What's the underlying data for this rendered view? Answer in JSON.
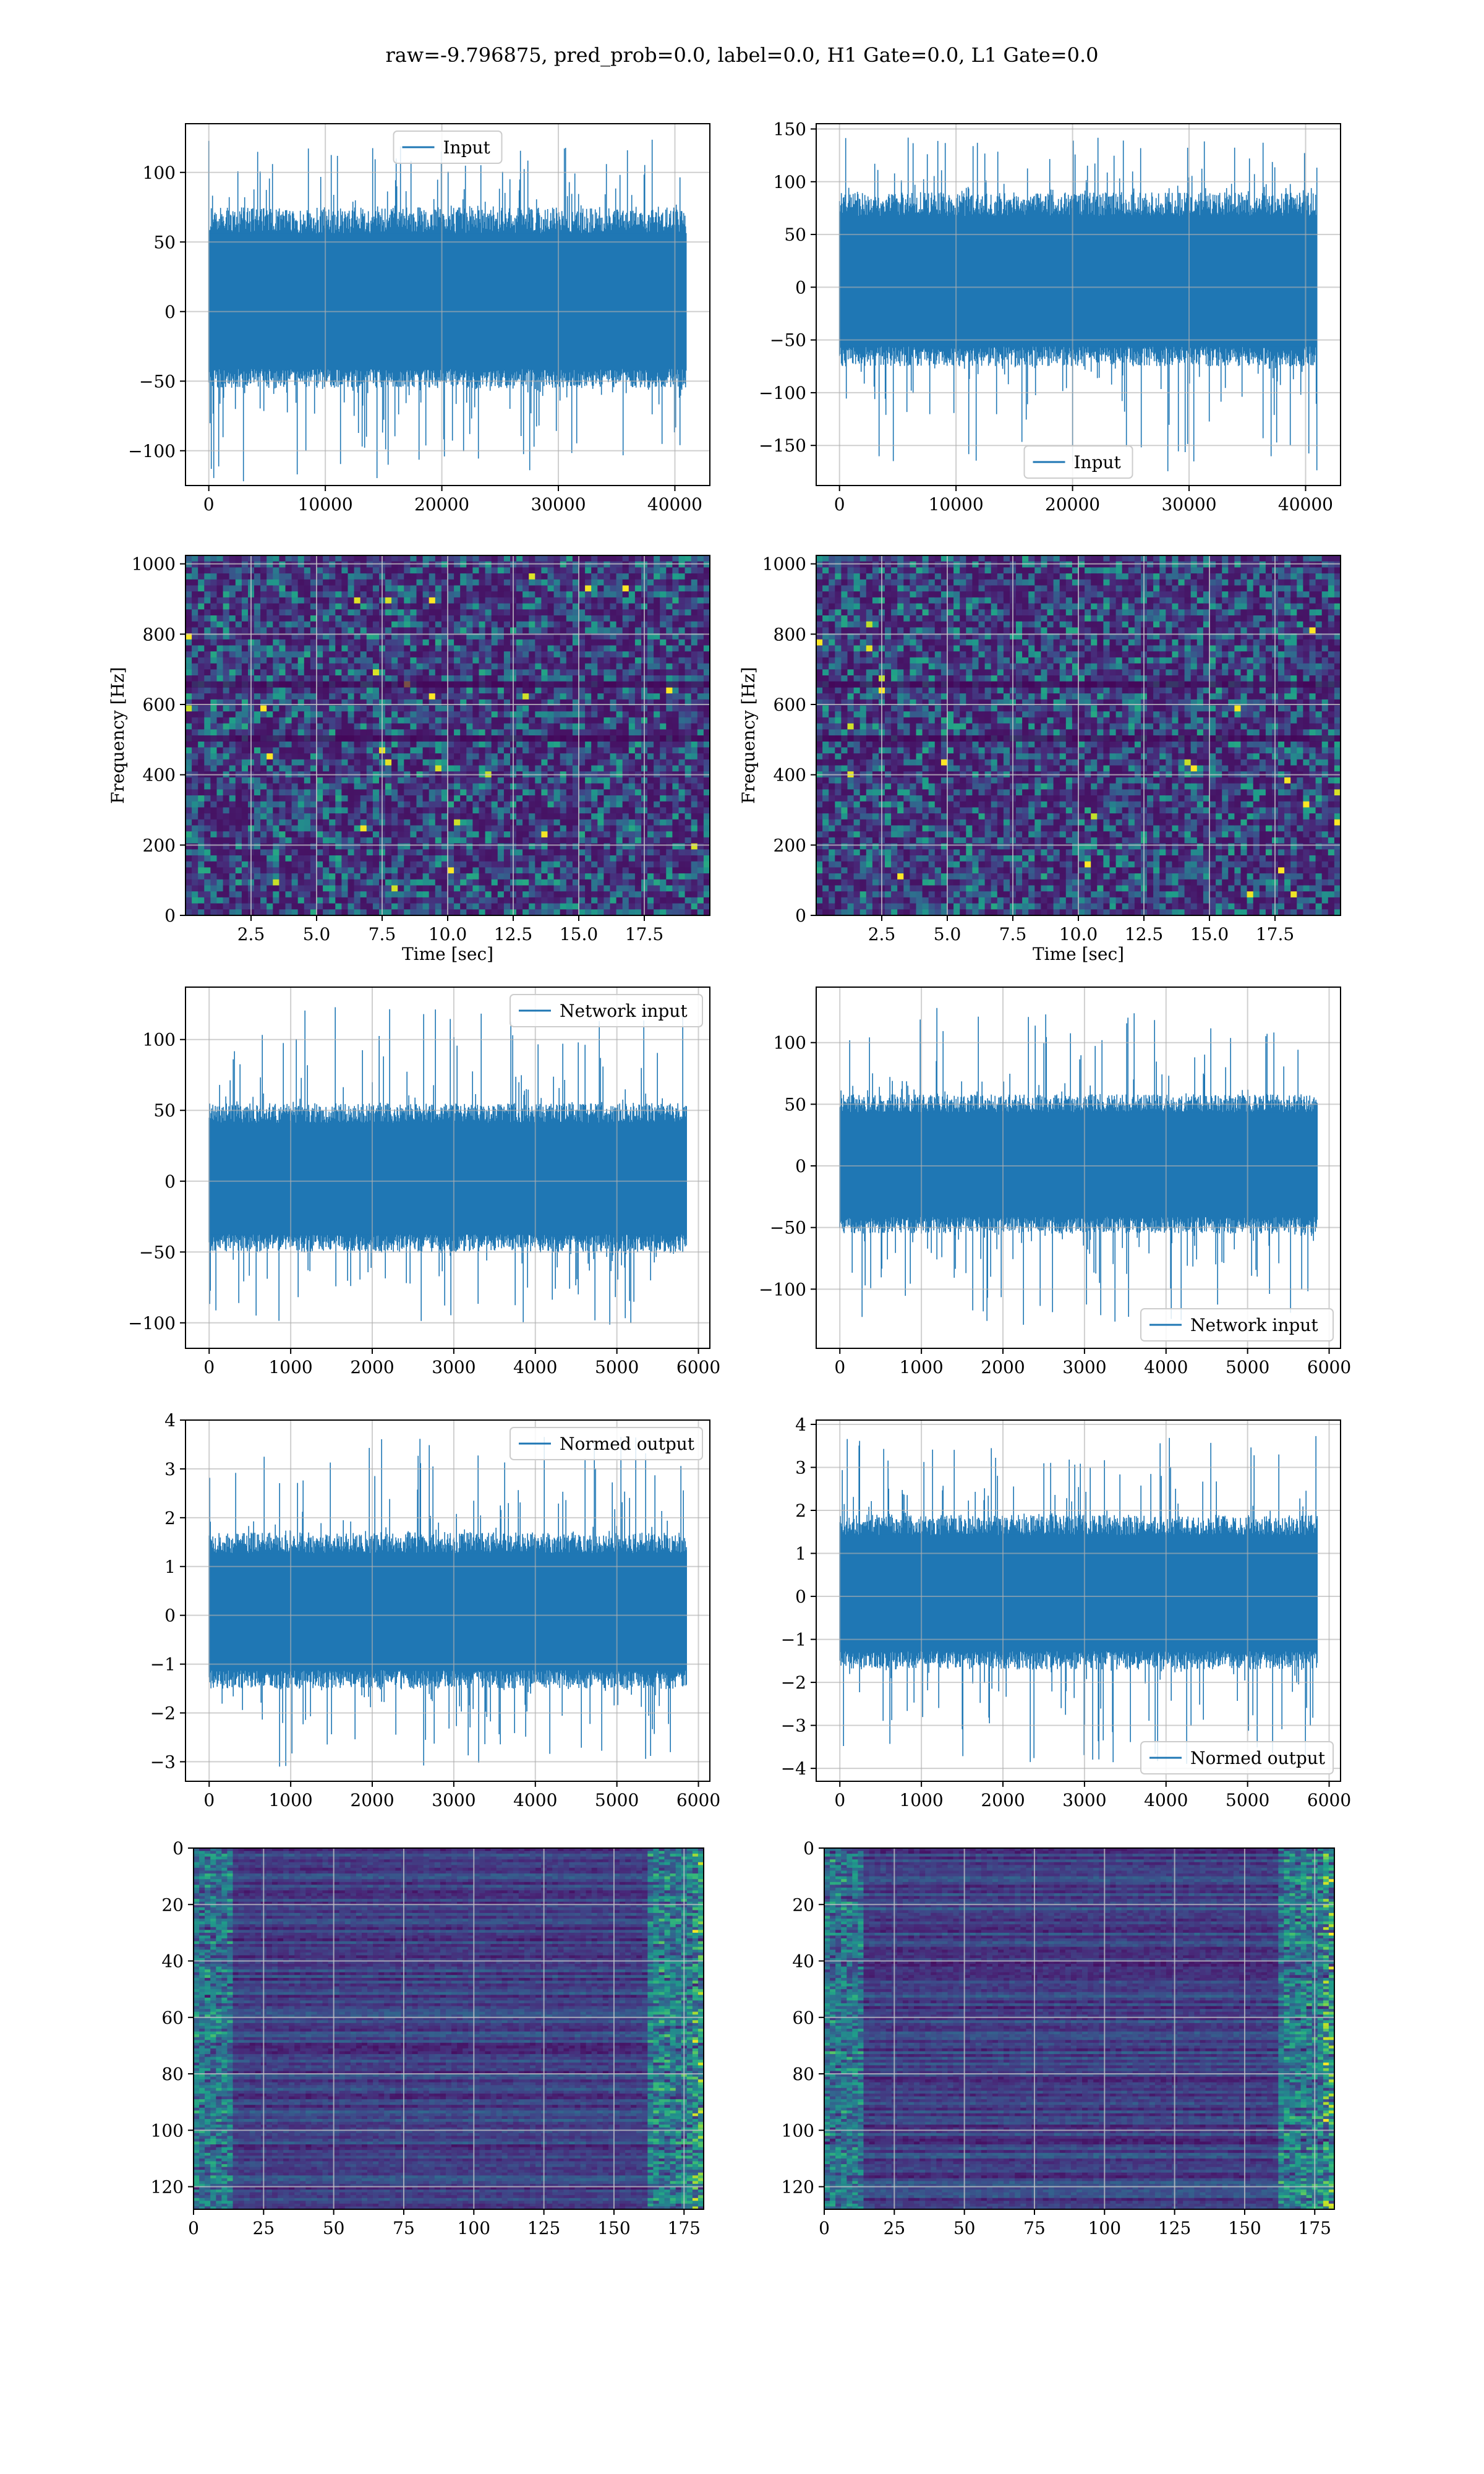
{
  "figure": {
    "title": "raw=-9.796875, pred_prob=0.0, label=0.0, H1 Gate=0.0, L1 Gate=0.0",
    "colors": {
      "line": "#1f77b4",
      "grid": "#b0b0b0",
      "viridis": [
        "#440154",
        "#482878",
        "#3e4989",
        "#31688e",
        "#26828e",
        "#1f9e89",
        "#35b779",
        "#6ece58",
        "#b5de2b",
        "#fde725"
      ]
    }
  },
  "chart_data": [
    {
      "id": "r0c0",
      "type": "line",
      "legend": {
        "label": "Input",
        "loc": "upper center"
      },
      "xlim": [
        -2000,
        43000
      ],
      "ylim": [
        -125,
        135
      ],
      "xticks": [
        0,
        10000,
        20000,
        30000,
        40000
      ],
      "xtick_labels": [
        "0",
        "10000",
        "20000",
        "30000",
        "40000"
      ],
      "yticks": [
        -100,
        -50,
        0,
        50,
        100
      ],
      "ytick_labels": [
        "−100",
        "−50",
        "0",
        "50",
        "100"
      ],
      "xlabel": "",
      "ylabel": "",
      "grid": true,
      "signal": {
        "n": 40960,
        "core": [
          -55,
          75
        ],
        "peak": [
          -122,
          125
        ]
      }
    },
    {
      "id": "r0c1",
      "type": "line",
      "legend": {
        "label": "Input",
        "loc": "lower center"
      },
      "xlim": [
        -2000,
        43000
      ],
      "ylim": [
        -188,
        155
      ],
      "xticks": [
        0,
        10000,
        20000,
        30000,
        40000
      ],
      "xtick_labels": [
        "0",
        "10000",
        "20000",
        "30000",
        "40000"
      ],
      "yticks": [
        -150,
        -100,
        -50,
        0,
        50,
        100,
        150
      ],
      "ytick_labels": [
        "−150",
        "−100",
        "−50",
        "0",
        "50",
        "100",
        "150"
      ],
      "xlabel": "",
      "ylabel": "",
      "grid": true,
      "signal": {
        "n": 40960,
        "core": [
          -75,
          90
        ],
        "peak": [
          -175,
          143
        ]
      }
    },
    {
      "id": "r1c0",
      "type": "heatmap",
      "xlim": [
        0,
        20
      ],
      "ylim": [
        0,
        1024
      ],
      "xticks": [
        2.5,
        5.0,
        7.5,
        10.0,
        12.5,
        15.0,
        17.5
      ],
      "xtick_labels": [
        "2.5",
        "5.0",
        "7.5",
        "10.0",
        "12.5",
        "15.0",
        "17.5"
      ],
      "yticks": [
        0,
        200,
        400,
        600,
        800,
        1000
      ],
      "ytick_labels": [
        "0",
        "200",
        "400",
        "600",
        "800",
        "1000"
      ],
      "xlabel": "Time [sec]",
      "ylabel": "Frequency [Hz]",
      "grid": true,
      "colormap": "viridis"
    },
    {
      "id": "r1c1",
      "type": "heatmap",
      "xlim": [
        0,
        20
      ],
      "ylim": [
        0,
        1024
      ],
      "xticks": [
        2.5,
        5.0,
        7.5,
        10.0,
        12.5,
        15.0,
        17.5
      ],
      "xtick_labels": [
        "2.5",
        "5.0",
        "7.5",
        "10.0",
        "12.5",
        "15.0",
        "17.5"
      ],
      "yticks": [
        0,
        200,
        400,
        600,
        800,
        1000
      ],
      "ytick_labels": [
        "0",
        "200",
        "400",
        "600",
        "800",
        "1000"
      ],
      "xlabel": "Time [sec]",
      "ylabel": "Frequency [Hz]",
      "grid": true,
      "colormap": "viridis"
    },
    {
      "id": "r2c0",
      "type": "line",
      "legend": {
        "label": "Network input",
        "loc": "upper right"
      },
      "xlim": [
        -290,
        6140
      ],
      "ylim": [
        -118,
        137
      ],
      "xticks": [
        0,
        1000,
        2000,
        3000,
        4000,
        5000,
        6000
      ],
      "xtick_labels": [
        "0",
        "1000",
        "2000",
        "3000",
        "4000",
        "5000",
        "6000"
      ],
      "yticks": [
        -100,
        -50,
        0,
        50,
        100
      ],
      "ytick_labels": [
        "−100",
        "−50",
        "0",
        "50",
        "100"
      ],
      "xlabel": "",
      "ylabel": "",
      "grid": true,
      "signal": {
        "n": 5850,
        "core": [
          -50,
          55
        ],
        "peak": [
          -105,
          128
        ]
      }
    },
    {
      "id": "r2c1",
      "type": "line",
      "legend": {
        "label": "Network input",
        "loc": "lower right"
      },
      "xlim": [
        -290,
        6140
      ],
      "ylim": [
        -148,
        145
      ],
      "xticks": [
        0,
        1000,
        2000,
        3000,
        4000,
        5000,
        6000
      ],
      "xtick_labels": [
        "0",
        "1000",
        "2000",
        "3000",
        "4000",
        "5000",
        "6000"
      ],
      "yticks": [
        -100,
        -50,
        0,
        50,
        100
      ],
      "ytick_labels": [
        "−100",
        "−50",
        "0",
        "50",
        "100"
      ],
      "xlabel": "",
      "ylabel": "",
      "grid": true,
      "signal": {
        "n": 5850,
        "core": [
          -55,
          58
        ],
        "peak": [
          -135,
          130
        ]
      }
    },
    {
      "id": "r3c0",
      "type": "line",
      "legend": {
        "label": "Normed output",
        "loc": "upper right"
      },
      "xlim": [
        -290,
        6140
      ],
      "ylim": [
        -3.4,
        4.0
      ],
      "xticks": [
        0,
        1000,
        2000,
        3000,
        4000,
        5000,
        6000
      ],
      "xtick_labels": [
        "0",
        "1000",
        "2000",
        "3000",
        "4000",
        "5000",
        "6000"
      ],
      "yticks": [
        -3,
        -2,
        -1,
        0,
        1,
        2,
        3,
        4
      ],
      "ytick_labels": [
        "−3",
        "−2",
        "−1",
        "0",
        "1",
        "2",
        "3",
        "4"
      ],
      "xlabel": "",
      "ylabel": "",
      "grid": true,
      "signal": {
        "n": 5850,
        "core": [
          -1.5,
          1.7
        ],
        "peak": [
          -3.1,
          3.7
        ]
      }
    },
    {
      "id": "r3c1",
      "type": "line",
      "legend": {
        "label": "Normed output",
        "loc": "lower right"
      },
      "xlim": [
        -290,
        6140
      ],
      "ylim": [
        -4.3,
        4.1
      ],
      "xticks": [
        0,
        1000,
        2000,
        3000,
        4000,
        5000,
        6000
      ],
      "xtick_labels": [
        "0",
        "1000",
        "2000",
        "3000",
        "4000",
        "5000",
        "6000"
      ],
      "yticks": [
        -4,
        -3,
        -2,
        -1,
        0,
        1,
        2,
        3,
        4
      ],
      "ytick_labels": [
        "−4",
        "−3",
        "−2",
        "−1",
        "0",
        "1",
        "2",
        "3",
        "4"
      ],
      "xlabel": "",
      "ylabel": "",
      "grid": true,
      "signal": {
        "n": 5850,
        "core": [
          -1.7,
          1.9
        ],
        "peak": [
          -3.9,
          3.8
        ]
      }
    },
    {
      "id": "r4c0",
      "type": "heatmap",
      "xlim": [
        0,
        182
      ],
      "ylim": [
        128,
        0
      ],
      "xticks": [
        0,
        25,
        50,
        75,
        100,
        125,
        150,
        175
      ],
      "xtick_labels": [
        "0",
        "25",
        "50",
        "75",
        "100",
        "125",
        "150",
        "175"
      ],
      "yticks": [
        0,
        20,
        40,
        60,
        80,
        100,
        120
      ],
      "ytick_labels": [
        "0",
        "20",
        "40",
        "60",
        "80",
        "100",
        "120"
      ],
      "xlabel": "",
      "ylabel": "",
      "grid": true,
      "colormap": "viridis"
    },
    {
      "id": "r4c1",
      "type": "heatmap",
      "xlim": [
        0,
        182
      ],
      "ylim": [
        128,
        0
      ],
      "xticks": [
        0,
        25,
        50,
        75,
        100,
        125,
        150,
        175
      ],
      "xtick_labels": [
        "0",
        "25",
        "50",
        "75",
        "100",
        "125",
        "150",
        "175"
      ],
      "yticks": [
        0,
        20,
        40,
        60,
        80,
        100,
        120
      ],
      "ytick_labels": [
        "0",
        "20",
        "40",
        "60",
        "80",
        "100",
        "120"
      ],
      "xlabel": "",
      "ylabel": "",
      "grid": true,
      "colormap": "viridis"
    }
  ]
}
